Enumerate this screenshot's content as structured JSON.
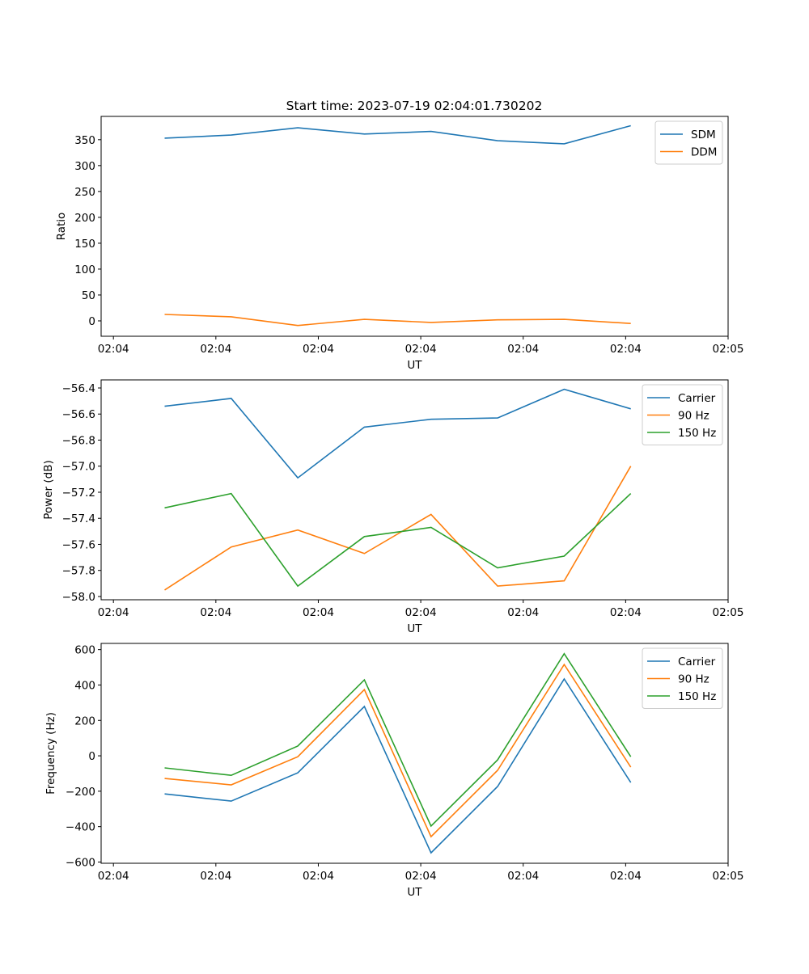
{
  "chart_data": {
    "title": "Start time: 2023-07-19 02:04:01.730202",
    "colors": {
      "c0": "#1f77b4",
      "c1": "#ff7f0e",
      "c2": "#2ca02c"
    },
    "x": [
      5.0,
      11.5,
      18.0,
      24.5,
      31.0,
      37.5,
      44.0,
      50.5
    ],
    "x_unit": "seconds after 02:04:00",
    "xticks": [
      0,
      10,
      20,
      30,
      40,
      50,
      60
    ],
    "xticklabels": [
      "02:04",
      "02:04",
      "02:04",
      "02:04",
      "02:04",
      "02:04",
      "02:05"
    ],
    "xlim": [
      -1.2,
      60
    ],
    "subplots": [
      {
        "type": "line",
        "xlabel": "UT",
        "ylabel": "Ratio",
        "ylim": [
          -29.7,
          395
        ],
        "yticks": [
          0,
          50,
          100,
          150,
          200,
          250,
          300,
          350
        ],
        "yticklabels": [
          "0",
          "50",
          "100",
          "150",
          "200",
          "250",
          "300",
          "350"
        ],
        "legend": "upper-right",
        "series": [
          {
            "name": "SDM",
            "color": "#1f77b4",
            "values": [
              353,
              359,
              373,
              361,
              366,
              348,
              342,
              377
            ]
          },
          {
            "name": "DDM",
            "color": "#ff7f0e",
            "values": [
              12.5,
              8,
              -9,
              3,
              -3,
              2,
              3,
              -5
            ]
          }
        ]
      },
      {
        "type": "line",
        "xlabel": "UT",
        "ylabel": "Power (dB)",
        "ylim": [
          -58.025,
          -56.338
        ],
        "yticks": [
          -58.0,
          -57.8,
          -57.6,
          -57.4,
          -57.2,
          -57.0,
          -56.8,
          -56.6,
          -56.4
        ],
        "yticklabels": [
          "−58.0",
          "−57.8",
          "−57.6",
          "−57.4",
          "−57.2",
          "−57.0",
          "−56.8",
          "−56.6",
          "−56.4"
        ],
        "legend": "upper-right",
        "series": [
          {
            "name": "Carrier",
            "color": "#1f77b4",
            "values": [
              -56.54,
              -56.48,
              -57.09,
              -56.7,
              -56.64,
              -56.63,
              -56.41,
              -56.56
            ]
          },
          {
            "name": "90 Hz",
            "color": "#ff7f0e",
            "values": [
              -57.95,
              -57.62,
              -57.49,
              -57.67,
              -57.37,
              -57.92,
              -57.88,
              -57.0
            ]
          },
          {
            "name": "150 Hz",
            "color": "#2ca02c",
            "values": [
              -57.32,
              -57.21,
              -57.92,
              -57.54,
              -57.47,
              -57.78,
              -57.69,
              -57.21
            ]
          }
        ]
      },
      {
        "type": "line",
        "xlabel": "UT",
        "ylabel": "Frequency (Hz)",
        "ylim": [
          -607,
          635
        ],
        "yticks": [
          -600,
          -400,
          -200,
          0,
          200,
          400,
          600
        ],
        "yticklabels": [
          "−600",
          "−400",
          "−200",
          "0",
          "200",
          "400",
          "600"
        ],
        "legend": "upper-right",
        "series": [
          {
            "name": "Carrier",
            "color": "#1f77b4",
            "values": [
              -215,
              -256,
              -96,
              279,
              -548,
              -173,
              434,
              -151
            ]
          },
          {
            "name": "90 Hz",
            "color": "#ff7f0e",
            "values": [
              -128,
              -164,
              -5,
              374,
              -457,
              -82,
              516,
              -64
            ]
          },
          {
            "name": "150 Hz",
            "color": "#2ca02c",
            "values": [
              -68,
              -110,
              55,
              429,
              -397,
              -23,
              577,
              -5
            ]
          }
        ]
      }
    ]
  }
}
